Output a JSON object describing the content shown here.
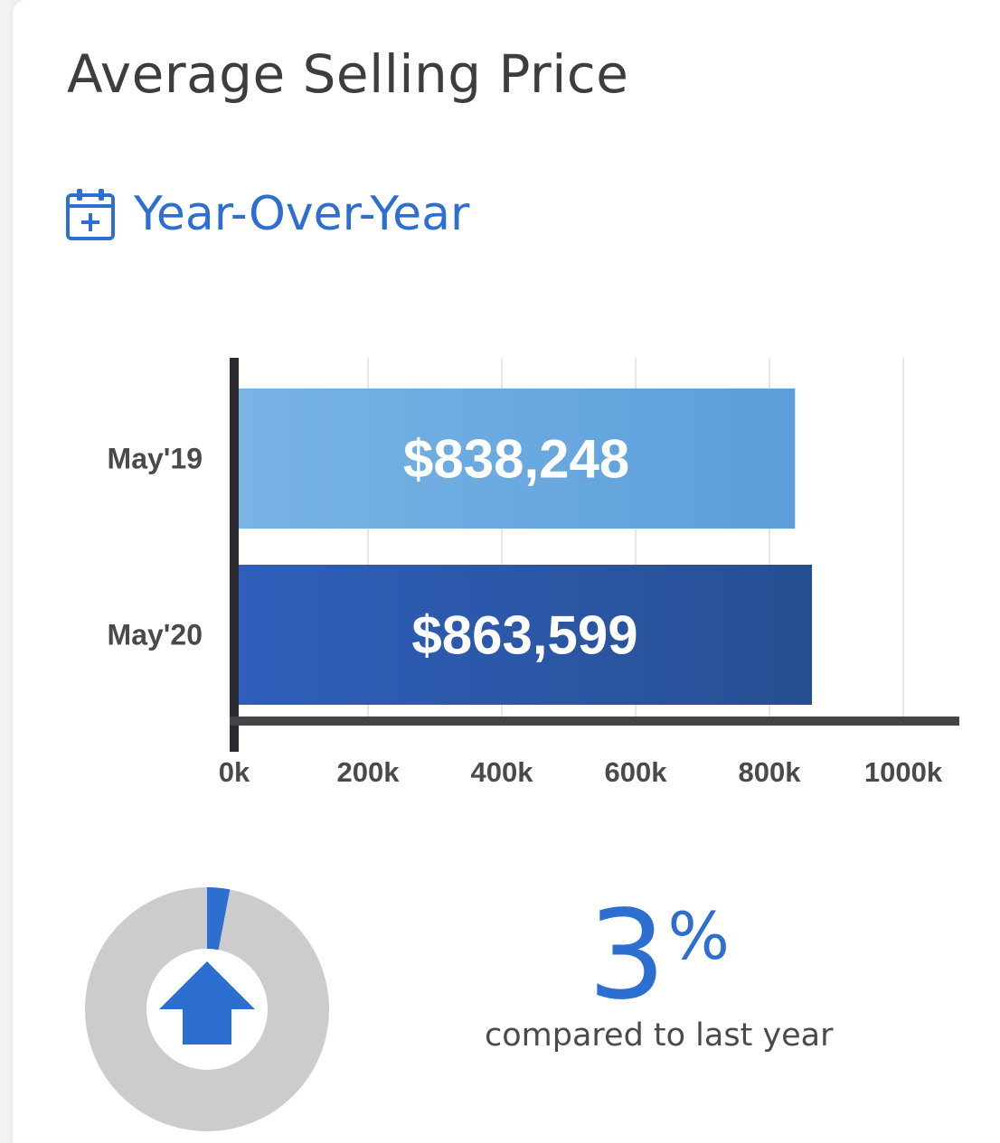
{
  "header": {
    "title": "Average Selling Price",
    "subtitle": "Year-Over-Year",
    "icon": "calendar-plus-icon"
  },
  "colors": {
    "accent": "#2c6fd1",
    "bar_light": "#6aaae0",
    "bar_dark": "#2d5bb0",
    "donut_track": "#cccccc",
    "axis": "#333338"
  },
  "chart_data": {
    "type": "bar",
    "orientation": "horizontal",
    "categories": [
      "May'19",
      "May'20"
    ],
    "values": [
      838248,
      863599
    ],
    "data_labels": [
      "$838,248",
      "$863,599"
    ],
    "x_ticks": [
      0,
      200000,
      400000,
      600000,
      800000,
      1000000
    ],
    "x_tick_labels": [
      "0k",
      "200k",
      "400k",
      "600k",
      "800k",
      "1000k"
    ],
    "xlim": [
      0,
      1080000
    ],
    "grid": true,
    "legend": "none"
  },
  "summary": {
    "change_percent": 3,
    "percent_value": "3",
    "percent_sign": "%",
    "caption": "compared to last year",
    "direction_icon": "arrow-up-icon"
  }
}
